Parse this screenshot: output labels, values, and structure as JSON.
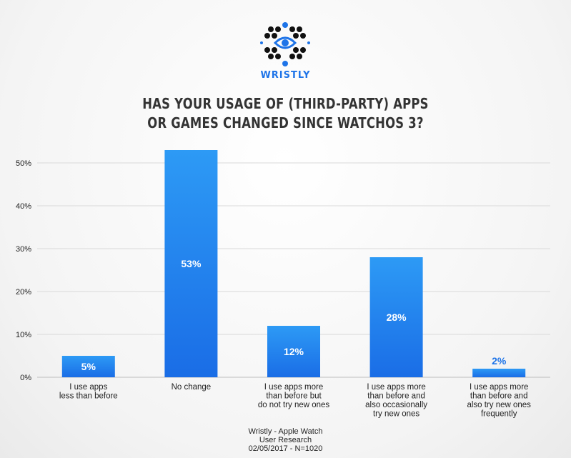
{
  "brand": {
    "name": "WRISTLY",
    "primary_color": "#1e74e8",
    "dot_color": "#111111"
  },
  "title_lines": [
    "HAS YOUR USAGE OF (THIRD-PARTY) APPS",
    "OR GAMES CHANGED SINCE WATCHOS 3?"
  ],
  "chart_data": {
    "type": "bar",
    "title": "HAS YOUR USAGE OF (THIRD-PARTY) APPS OR GAMES CHANGED SINCE WATCHOS 3?",
    "categories": [
      [
        "I use apps",
        "less than before"
      ],
      [
        "No change"
      ],
      [
        "I use apps more",
        "than before but",
        "do not try new ones"
      ],
      [
        "I use apps more",
        "than before and",
        "also occasionally",
        "try new ones"
      ],
      [
        "I use apps more",
        "than before and",
        "also try new ones",
        "frequently"
      ]
    ],
    "values": [
      5,
      53,
      12,
      28,
      2
    ],
    "data_labels": [
      "5%",
      "53%",
      "12%",
      "28%",
      "2%"
    ],
    "yticks": [
      0,
      10,
      20,
      30,
      40,
      50
    ],
    "ytick_labels": [
      "0%",
      "10%",
      "20%",
      "30%",
      "40%",
      "50%"
    ],
    "ylim": [
      0,
      55
    ],
    "xlabel": "",
    "ylabel": "",
    "grid": true,
    "bar_color_top": "#2d9af5",
    "bar_color_bottom": "#1a6de6",
    "outside_label_color": "#1e74e8"
  },
  "footer_lines": [
    "Wristly - Apple Watch",
    "User Research",
    "02/05/2017 - N=1020"
  ]
}
